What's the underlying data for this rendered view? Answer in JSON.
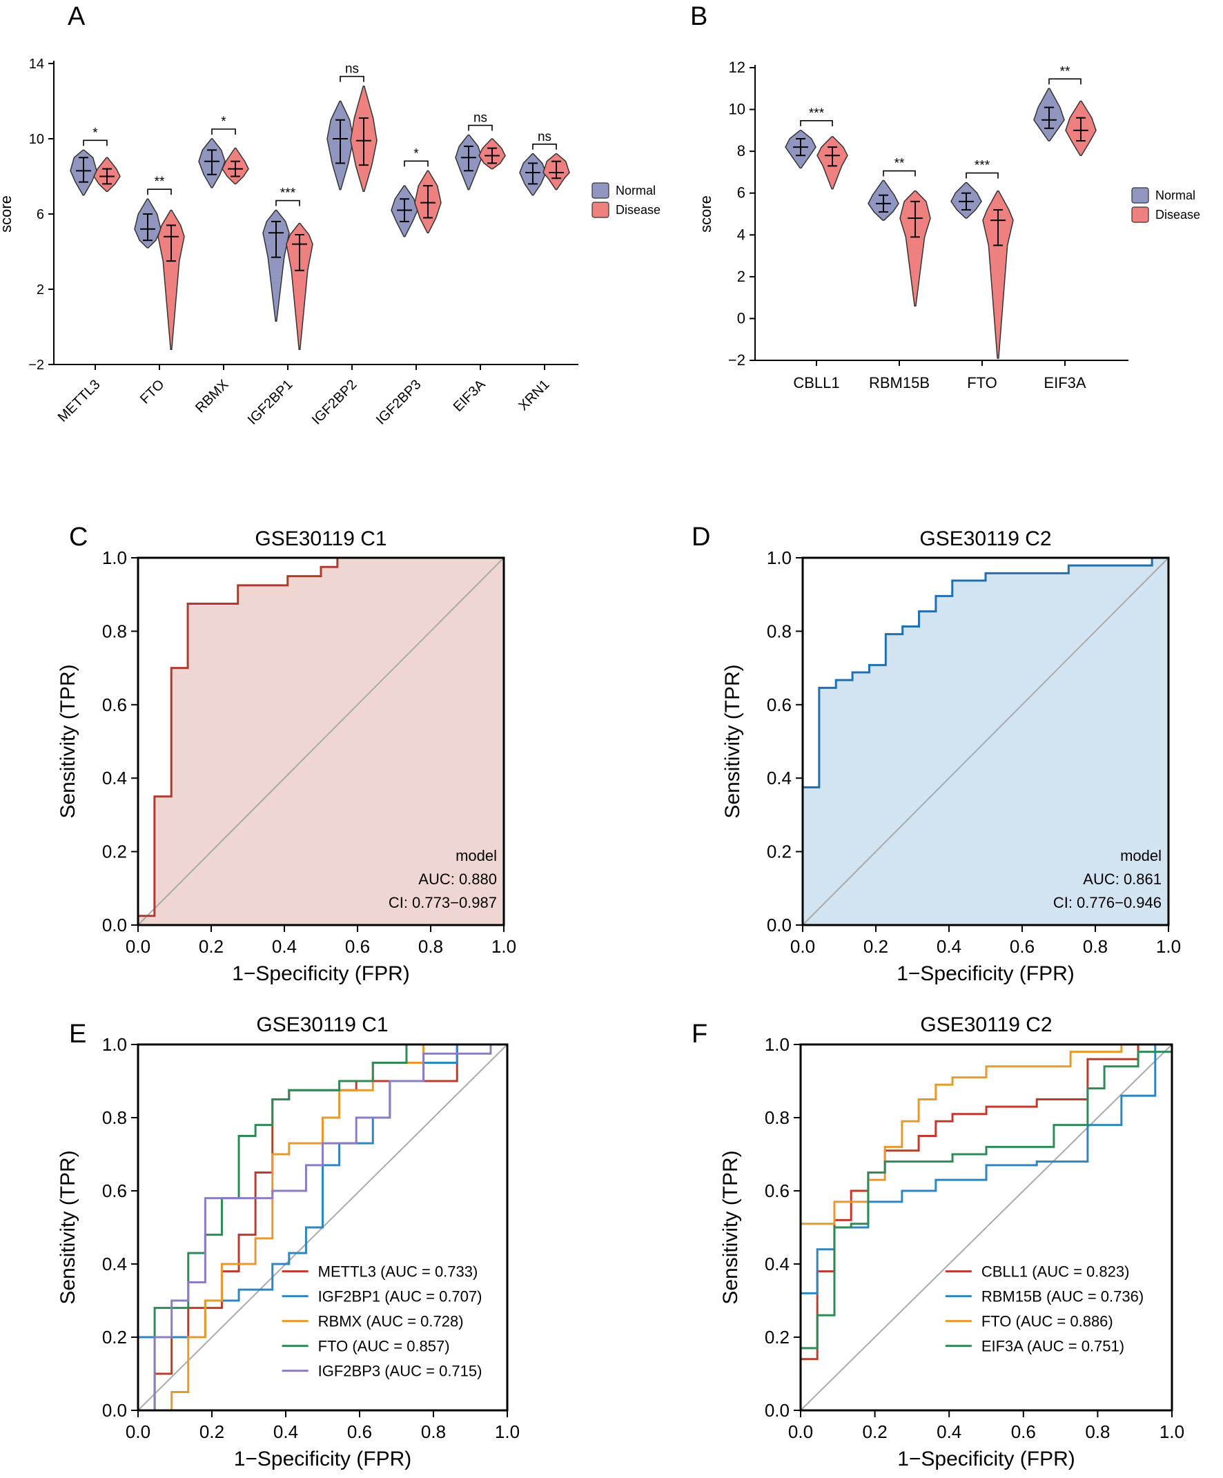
{
  "figure": {
    "panel_labels": [
      "A",
      "B",
      "C",
      "D",
      "E",
      "F"
    ]
  },
  "chart_data": [
    {
      "panel": "A",
      "type": "violin",
      "ylabel": "score",
      "ylim": [
        -2,
        14
      ],
      "yticks": [
        -2,
        2,
        6,
        10,
        14
      ],
      "categories": [
        "METTL3",
        "FTO",
        "RBMX",
        "IGF2BP1",
        "IGF2BP2",
        "IGF2BP3",
        "EIF3A",
        "XRN1"
      ],
      "legend": [
        "Normal",
        "Disease"
      ],
      "colors": {
        "Normal": "#9096bf",
        "Disease": "#ef8080"
      },
      "significance": [
        "*",
        "**",
        "*",
        "***",
        "ns",
        "*",
        "ns",
        "ns"
      ],
      "series": [
        {
          "name": "Normal",
          "stats": [
            {
              "min": 7.0,
              "q1": 7.7,
              "median": 8.3,
              "q3": 9.0,
              "max": 9.4
            },
            {
              "min": 4.2,
              "q1": 4.6,
              "median": 5.2,
              "q3": 6.0,
              "max": 6.8
            },
            {
              "min": 7.4,
              "q1": 8.1,
              "median": 8.8,
              "q3": 9.4,
              "max": 10.0
            },
            {
              "min": 0.3,
              "q1": 3.7,
              "median": 5.0,
              "q3": 5.6,
              "max": 6.2
            },
            {
              "min": 7.3,
              "q1": 8.7,
              "median": 10.0,
              "q3": 11.0,
              "max": 12.0
            },
            {
              "min": 4.8,
              "q1": 5.6,
              "median": 6.2,
              "q3": 6.8,
              "max": 7.5
            },
            {
              "min": 7.3,
              "q1": 8.3,
              "median": 9.0,
              "q3": 9.6,
              "max": 10.2
            },
            {
              "min": 7.0,
              "q1": 7.6,
              "median": 8.2,
              "q3": 8.7,
              "max": 9.2
            }
          ]
        },
        {
          "name": "Disease",
          "stats": [
            {
              "min": 7.2,
              "q1": 7.6,
              "median": 8.0,
              "q3": 8.4,
              "max": 9.0
            },
            {
              "min": -1.2,
              "q1": 3.5,
              "median": 4.8,
              "q3": 5.4,
              "max": 6.2
            },
            {
              "min": 7.6,
              "q1": 8.0,
              "median": 8.4,
              "q3": 8.8,
              "max": 9.5
            },
            {
              "min": -1.2,
              "q1": 3.0,
              "median": 4.4,
              "q3": 4.9,
              "max": 5.5
            },
            {
              "min": 7.2,
              "q1": 8.6,
              "median": 9.9,
              "q3": 11.1,
              "max": 12.8
            },
            {
              "min": 5.0,
              "q1": 5.8,
              "median": 6.6,
              "q3": 7.5,
              "max": 8.3
            },
            {
              "min": 8.4,
              "q1": 8.7,
              "median": 9.1,
              "q3": 9.5,
              "max": 10.0
            },
            {
              "min": 7.3,
              "q1": 7.9,
              "median": 8.2,
              "q3": 8.8,
              "max": 9.2
            }
          ]
        }
      ]
    },
    {
      "panel": "B",
      "type": "violin",
      "ylabel": "score",
      "ylim": [
        -2,
        12
      ],
      "yticks": [
        -2,
        0,
        2,
        4,
        6,
        8,
        10,
        12
      ],
      "categories": [
        "CBLL1",
        "RBM15B",
        "FTO",
        "EIF3A"
      ],
      "legend": [
        "Normal",
        "Disease"
      ],
      "colors": {
        "Normal": "#9096bf",
        "Disease": "#ef8080"
      },
      "significance": [
        "***",
        "**",
        "***",
        "**"
      ],
      "series": [
        {
          "name": "Normal",
          "stats": [
            {
              "min": 7.2,
              "q1": 7.8,
              "median": 8.2,
              "q3": 8.6,
              "max": 9.0
            },
            {
              "min": 4.7,
              "q1": 5.1,
              "median": 5.5,
              "q3": 5.9,
              "max": 6.6
            },
            {
              "min": 4.8,
              "q1": 5.2,
              "median": 5.6,
              "q3": 6.0,
              "max": 6.5
            },
            {
              "min": 8.5,
              "q1": 9.1,
              "median": 9.5,
              "q3": 10.1,
              "max": 11.0
            }
          ]
        },
        {
          "name": "Disease",
          "stats": [
            {
              "min": 6.2,
              "q1": 7.3,
              "median": 7.8,
              "q3": 8.2,
              "max": 8.7
            },
            {
              "min": 0.6,
              "q1": 3.9,
              "median": 4.8,
              "q3": 5.6,
              "max": 6.1
            },
            {
              "min": -1.9,
              "q1": 3.5,
              "median": 4.7,
              "q3": 5.2,
              "max": 6.1
            },
            {
              "min": 7.8,
              "q1": 8.5,
              "median": 9.0,
              "q3": 9.6,
              "max": 10.4
            }
          ]
        }
      ]
    },
    {
      "panel": "C",
      "type": "roc",
      "title": "GSE30119 C1",
      "xlabel": "1−Specificity (FPR)",
      "ylabel": "Sensitivity (TPR)",
      "xlim": [
        0,
        1
      ],
      "ylim": [
        0,
        1
      ],
      "xticks": [
        "0.0",
        "0.2",
        "0.4",
        "0.6",
        "0.8",
        "1.0"
      ],
      "yticks": [
        "0.0",
        "0.2",
        "0.4",
        "0.6",
        "0.8",
        "1.0"
      ],
      "color": "#b03a2e",
      "fill": "#efd6d2",
      "annotation": [
        "model",
        "AUC: 0.880",
        "CI: 0.773−0.987"
      ],
      "series": [
        {
          "name": "model",
          "x": [
            0,
            0,
            0.045,
            0.045,
            0.045,
            0.091,
            0.091,
            0.136,
            0.136,
            0.273,
            0.273,
            0.409,
            0.409,
            0.5,
            0.5,
            0.545,
            0.545,
            1.0
          ],
          "y": [
            0,
            0.025,
            0.025,
            0.35,
            0.35,
            0.35,
            0.7,
            0.7,
            0.875,
            0.875,
            0.925,
            0.925,
            0.95,
            0.95,
            0.975,
            0.975,
            1.0,
            1.0
          ]
        }
      ]
    },
    {
      "panel": "D",
      "type": "roc",
      "title": "GSE30119 C2",
      "xlabel": "1−Specificity (FPR)",
      "ylabel": "Sensitivity (TPR)",
      "xlim": [
        0,
        1
      ],
      "ylim": [
        0,
        1
      ],
      "xticks": [
        "0.0",
        "0.2",
        "0.4",
        "0.6",
        "0.8",
        "1.0"
      ],
      "yticks": [
        "0.0",
        "0.2",
        "0.4",
        "0.6",
        "0.8",
        "1.0"
      ],
      "color": "#1f6fb2",
      "fill": "#d2e3f2",
      "annotation": [
        "model",
        "AUC: 0.861",
        "CI: 0.776−0.946"
      ],
      "series": [
        {
          "name": "model",
          "x": [
            0,
            0,
            0.045,
            0.045,
            0.091,
            0.091,
            0.136,
            0.136,
            0.182,
            0.182,
            0.227,
            0.227,
            0.273,
            0.273,
            0.318,
            0.318,
            0.364,
            0.364,
            0.409,
            0.409,
            0.5,
            0.5,
            0.727,
            0.727,
            0.955,
            0.955,
            1.0
          ],
          "y": [
            0,
            0.375,
            0.375,
            0.646,
            0.646,
            0.667,
            0.667,
            0.688,
            0.688,
            0.708,
            0.708,
            0.792,
            0.792,
            0.813,
            0.813,
            0.854,
            0.854,
            0.896,
            0.896,
            0.938,
            0.938,
            0.958,
            0.958,
            0.979,
            0.979,
            1.0,
            1.0
          ]
        }
      ]
    },
    {
      "panel": "E",
      "type": "roc",
      "title": "GSE30119 C1",
      "xlabel": "1−Specificity (FPR)",
      "ylabel": "Sensitivity (TPR)",
      "xlim": [
        0,
        1
      ],
      "ylim": [
        0,
        1
      ],
      "xticks": [
        "0.0",
        "0.2",
        "0.4",
        "0.6",
        "0.8",
        "1.0"
      ],
      "yticks": [
        "0.0",
        "0.2",
        "0.4",
        "0.6",
        "0.8",
        "1.0"
      ],
      "series": [
        {
          "name": "METTL3",
          "legend": "METTL3 (AUC = 0.733)",
          "color": "#c0392b",
          "x": [
            0,
            0.045,
            0.045,
            0.091,
            0.091,
            0.136,
            0.136,
            0.227,
            0.227,
            0.273,
            0.273,
            0.318,
            0.318,
            0.364,
            0.364,
            0.409,
            0.409,
            0.591,
            0.591,
            0.682,
            0.682,
            0.864,
            0.864,
            1.0
          ],
          "y": [
            0,
            0,
            0.1,
            0.1,
            0.2,
            0.2,
            0.28,
            0.28,
            0.38,
            0.38,
            0.48,
            0.48,
            0.65,
            0.65,
            0.85,
            0.85,
            0.875,
            0.875,
            0.9,
            0.9,
            0.9,
            0.9,
            1.0,
            1.0
          ]
        },
        {
          "name": "IGF2BP1",
          "legend": "IGF2BP1 (AUC = 0.707)",
          "color": "#2e86c1",
          "x": [
            0,
            0,
            0.182,
            0.182,
            0.273,
            0.273,
            0.364,
            0.364,
            0.409,
            0.409,
            0.455,
            0.455,
            0.5,
            0.5,
            0.545,
            0.545,
            0.636,
            0.636,
            0.682,
            0.682,
            0.773,
            0.773,
            0.864,
            0.864,
            1.0
          ],
          "y": [
            0,
            0.2,
            0.2,
            0.3,
            0.3,
            0.33,
            0.33,
            0.4,
            0.4,
            0.43,
            0.43,
            0.5,
            0.5,
            0.67,
            0.67,
            0.73,
            0.73,
            0.8,
            0.8,
            0.9,
            0.9,
            0.95,
            0.95,
            1.0,
            1.0
          ]
        },
        {
          "name": "RBMX",
          "legend": "RBMX (AUC = 0.728)",
          "color": "#e69a2e",
          "x": [
            0,
            0.091,
            0.091,
            0.136,
            0.136,
            0.182,
            0.182,
            0.227,
            0.227,
            0.318,
            0.318,
            0.364,
            0.364,
            0.409,
            0.409,
            0.5,
            0.5,
            0.545,
            0.545,
            0.636,
            0.636,
            0.773,
            0.773,
            1.0
          ],
          "y": [
            0,
            0,
            0.05,
            0.05,
            0.2,
            0.2,
            0.3,
            0.3,
            0.4,
            0.4,
            0.47,
            0.47,
            0.7,
            0.7,
            0.73,
            0.73,
            0.8,
            0.8,
            0.875,
            0.875,
            0.95,
            0.95,
            1.0,
            1.0
          ]
        },
        {
          "name": "FTO",
          "legend": "FTO (AUC = 0.857)",
          "color": "#2e8b57",
          "x": [
            0,
            0.045,
            0.045,
            0.136,
            0.136,
            0.182,
            0.182,
            0.227,
            0.227,
            0.273,
            0.273,
            0.318,
            0.318,
            0.364,
            0.364,
            0.409,
            0.409,
            0.545,
            0.545,
            0.636,
            0.636,
            0.727,
            0.727,
            1.0
          ],
          "y": [
            0,
            0,
            0.28,
            0.28,
            0.43,
            0.43,
            0.48,
            0.48,
            0.58,
            0.58,
            0.75,
            0.75,
            0.78,
            0.78,
            0.85,
            0.85,
            0.875,
            0.875,
            0.9,
            0.9,
            0.95,
            0.95,
            1.0,
            1.0
          ]
        },
        {
          "name": "IGF2BP3",
          "legend": "IGF2BP3 (AUC = 0.715)",
          "color": "#8e7cc3",
          "x": [
            0,
            0.045,
            0.045,
            0.091,
            0.091,
            0.136,
            0.136,
            0.182,
            0.182,
            0.273,
            0.273,
            0.364,
            0.364,
            0.455,
            0.455,
            0.5,
            0.5,
            0.591,
            0.591,
            0.682,
            0.682,
            0.773,
            0.773,
            0.955,
            0.955,
            1.0
          ],
          "y": [
            0,
            0,
            0.2,
            0.2,
            0.3,
            0.3,
            0.35,
            0.35,
            0.58,
            0.58,
            0.58,
            0.58,
            0.6,
            0.6,
            0.67,
            0.67,
            0.73,
            0.73,
            0.8,
            0.8,
            0.9,
            0.9,
            0.975,
            0.975,
            1.0,
            1.0
          ]
        }
      ]
    },
    {
      "panel": "F",
      "type": "roc",
      "title": "GSE30119 C2",
      "xlabel": "1−Specificity (FPR)",
      "ylabel": "Sensitivity (TPR)",
      "xlim": [
        0,
        1
      ],
      "ylim": [
        0,
        1
      ],
      "xticks": [
        "0.0",
        "0.2",
        "0.4",
        "0.6",
        "0.8",
        "1.0"
      ],
      "yticks": [
        "0.0",
        "0.2",
        "0.4",
        "0.6",
        "0.8",
        "1.0"
      ],
      "series": [
        {
          "name": "CBLL1",
          "legend": "CBLL1 (AUC = 0.823)",
          "color": "#c0392b",
          "x": [
            0,
            0,
            0.045,
            0.045,
            0.091,
            0.091,
            0.136,
            0.136,
            0.182,
            0.182,
            0.227,
            0.227,
            0.318,
            0.318,
            0.364,
            0.364,
            0.409,
            0.409,
            0.5,
            0.5,
            0.636,
            0.636,
            0.773,
            0.773,
            0.909,
            0.909,
            1.0
          ],
          "y": [
            0,
            0.14,
            0.14,
            0.38,
            0.38,
            0.52,
            0.52,
            0.6,
            0.6,
            0.65,
            0.65,
            0.71,
            0.71,
            0.75,
            0.75,
            0.79,
            0.79,
            0.81,
            0.81,
            0.83,
            0.83,
            0.85,
            0.85,
            0.96,
            0.96,
            1.0,
            1.0
          ]
        },
        {
          "name": "RBM15B",
          "legend": "RBM15B (AUC = 0.736)",
          "color": "#2e86c1",
          "x": [
            0,
            0,
            0.045,
            0.045,
            0.091,
            0.091,
            0.182,
            0.182,
            0.273,
            0.273,
            0.364,
            0.364,
            0.5,
            0.5,
            0.636,
            0.636,
            0.773,
            0.773,
            0.864,
            0.864,
            0.955,
            0.955,
            1.0
          ],
          "y": [
            0,
            0.32,
            0.32,
            0.44,
            0.44,
            0.5,
            0.5,
            0.57,
            0.57,
            0.6,
            0.6,
            0.63,
            0.63,
            0.67,
            0.67,
            0.68,
            0.68,
            0.78,
            0.78,
            0.86,
            0.86,
            1.0,
            1.0
          ]
        },
        {
          "name": "FTO",
          "legend": "FTO (AUC = 0.886)",
          "color": "#e69a2e",
          "x": [
            0,
            0,
            0.091,
            0.091,
            0.182,
            0.182,
            0.227,
            0.227,
            0.273,
            0.273,
            0.318,
            0.318,
            0.364,
            0.364,
            0.409,
            0.409,
            0.5,
            0.5,
            0.727,
            0.727,
            0.864,
            0.864,
            1.0
          ],
          "y": [
            0,
            0.51,
            0.51,
            0.57,
            0.57,
            0.63,
            0.63,
            0.72,
            0.72,
            0.79,
            0.79,
            0.85,
            0.85,
            0.89,
            0.89,
            0.91,
            0.91,
            0.94,
            0.94,
            0.98,
            0.98,
            1.0,
            1.0
          ]
        },
        {
          "name": "EIF3A",
          "legend": "EIF3A (AUC = 0.751)",
          "color": "#2e8b57",
          "x": [
            0,
            0,
            0.045,
            0.045,
            0.091,
            0.091,
            0.136,
            0.136,
            0.182,
            0.182,
            0.227,
            0.227,
            0.409,
            0.409,
            0.5,
            0.5,
            0.682,
            0.682,
            0.773,
            0.773,
            0.818,
            0.818,
            0.909,
            0.909,
            1.0
          ],
          "y": [
            0,
            0.17,
            0.17,
            0.26,
            0.26,
            0.5,
            0.5,
            0.51,
            0.51,
            0.65,
            0.65,
            0.68,
            0.68,
            0.7,
            0.7,
            0.72,
            0.72,
            0.78,
            0.78,
            0.88,
            0.88,
            0.94,
            0.94,
            0.98,
            0.98
          ]
        }
      ]
    }
  ]
}
